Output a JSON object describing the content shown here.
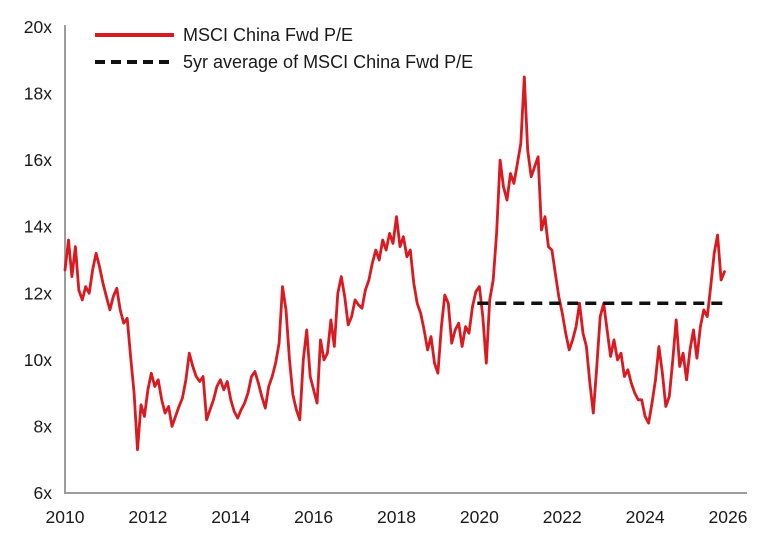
{
  "chart_data": {
    "type": "line",
    "title": "",
    "xlabel": "",
    "ylabel": "",
    "grid": false,
    "legend_position": "top-left",
    "x_range": [
      2010,
      2026
    ],
    "y_range": [
      6,
      20
    ],
    "x_ticks": [
      {
        "label": "2010",
        "value": 2010
      },
      {
        "label": "2012",
        "value": 2012
      },
      {
        "label": "2014",
        "value": 2014
      },
      {
        "label": "2016",
        "value": 2016
      },
      {
        "label": "2018",
        "value": 2018
      },
      {
        "label": "2020",
        "value": 2020
      },
      {
        "label": "2022",
        "value": 2022
      },
      {
        "label": "2024",
        "value": 2024
      },
      {
        "label": "2026",
        "value": 2026
      }
    ],
    "y_ticks": [
      {
        "label": "6x",
        "value": 6
      },
      {
        "label": "8x",
        "value": 8
      },
      {
        "label": "10x",
        "value": 10
      },
      {
        "label": "12x",
        "value": 12
      },
      {
        "label": "14x",
        "value": 14
      },
      {
        "label": "16x",
        "value": 16
      },
      {
        "label": "18x",
        "value": 18
      },
      {
        "label": "20x",
        "value": 20
      }
    ],
    "series": [
      {
        "name": "MSCI China Fwd P/E",
        "color": "#DA1A20",
        "line_style": "solid",
        "sampling": "monthly",
        "start_year": 2010,
        "values": [
          12.7,
          13.6,
          12.5,
          13.4,
          12.1,
          11.8,
          12.2,
          12.0,
          12.7,
          13.2,
          12.8,
          12.3,
          11.9,
          11.5,
          11.9,
          12.15,
          11.5,
          11.1,
          11.25,
          10.1,
          9.0,
          7.3,
          8.65,
          8.3,
          9.1,
          9.6,
          9.2,
          9.4,
          8.8,
          8.4,
          8.6,
          8.0,
          8.3,
          8.6,
          8.85,
          9.4,
          10.2,
          9.8,
          9.5,
          9.35,
          9.5,
          8.2,
          8.5,
          8.8,
          9.2,
          9.4,
          9.1,
          9.35,
          8.8,
          8.45,
          8.25,
          8.5,
          8.7,
          9.0,
          9.5,
          9.65,
          9.3,
          8.9,
          8.55,
          9.2,
          9.5,
          9.9,
          10.5,
          12.2,
          11.5,
          10.0,
          8.95,
          8.5,
          8.2,
          10.0,
          10.9,
          9.5,
          9.1,
          8.7,
          10.6,
          10.0,
          10.2,
          11.2,
          10.4,
          12.0,
          12.5,
          11.9,
          11.05,
          11.3,
          11.8,
          11.65,
          11.55,
          12.1,
          12.4,
          12.9,
          13.3,
          13.0,
          13.6,
          13.3,
          13.8,
          13.5,
          14.3,
          13.4,
          13.7,
          13.1,
          13.3,
          12.3,
          11.7,
          11.4,
          10.9,
          10.3,
          10.7,
          9.9,
          9.6,
          11.0,
          11.95,
          11.7,
          10.5,
          10.9,
          11.1,
          10.4,
          11.0,
          10.8,
          11.6,
          12.05,
          12.2,
          11.3,
          9.9,
          11.8,
          12.4,
          13.8,
          16.0,
          15.2,
          14.8,
          15.6,
          15.3,
          15.9,
          16.5,
          18.5,
          16.3,
          15.5,
          15.8,
          16.1,
          13.9,
          14.3,
          13.4,
          13.3,
          12.6,
          11.9,
          11.4,
          10.8,
          10.3,
          10.6,
          11.0,
          11.7,
          10.8,
          10.4,
          9.3,
          8.4,
          9.8,
          11.3,
          11.7,
          10.9,
          10.1,
          10.6,
          10.0,
          10.2,
          9.5,
          9.7,
          9.3,
          9.0,
          8.8,
          8.8,
          8.3,
          8.1,
          8.7,
          9.4,
          10.4,
          9.6,
          8.6,
          8.9,
          10.0,
          11.2,
          9.8,
          10.2,
          9.4,
          10.3,
          10.9,
          10.05,
          11.0,
          11.5,
          11.3,
          12.2,
          13.2,
          13.75,
          12.4,
          12.65
        ]
      },
      {
        "name": "5yr average of MSCI China Fwd P/E",
        "color": "#111111",
        "line_style": "dashed",
        "value": 11.7,
        "x_start": 2019.95,
        "x_end": 2025.92
      }
    ]
  },
  "legend": {
    "item1": "MSCI China Fwd P/E",
    "item2": "5yr average of MSCI China Fwd P/E"
  },
  "colors": {
    "series_red": "#DA1A20",
    "average_black": "#111111",
    "axis_gray": "#9C9C9C",
    "tick_text": "#1A1A1A"
  }
}
